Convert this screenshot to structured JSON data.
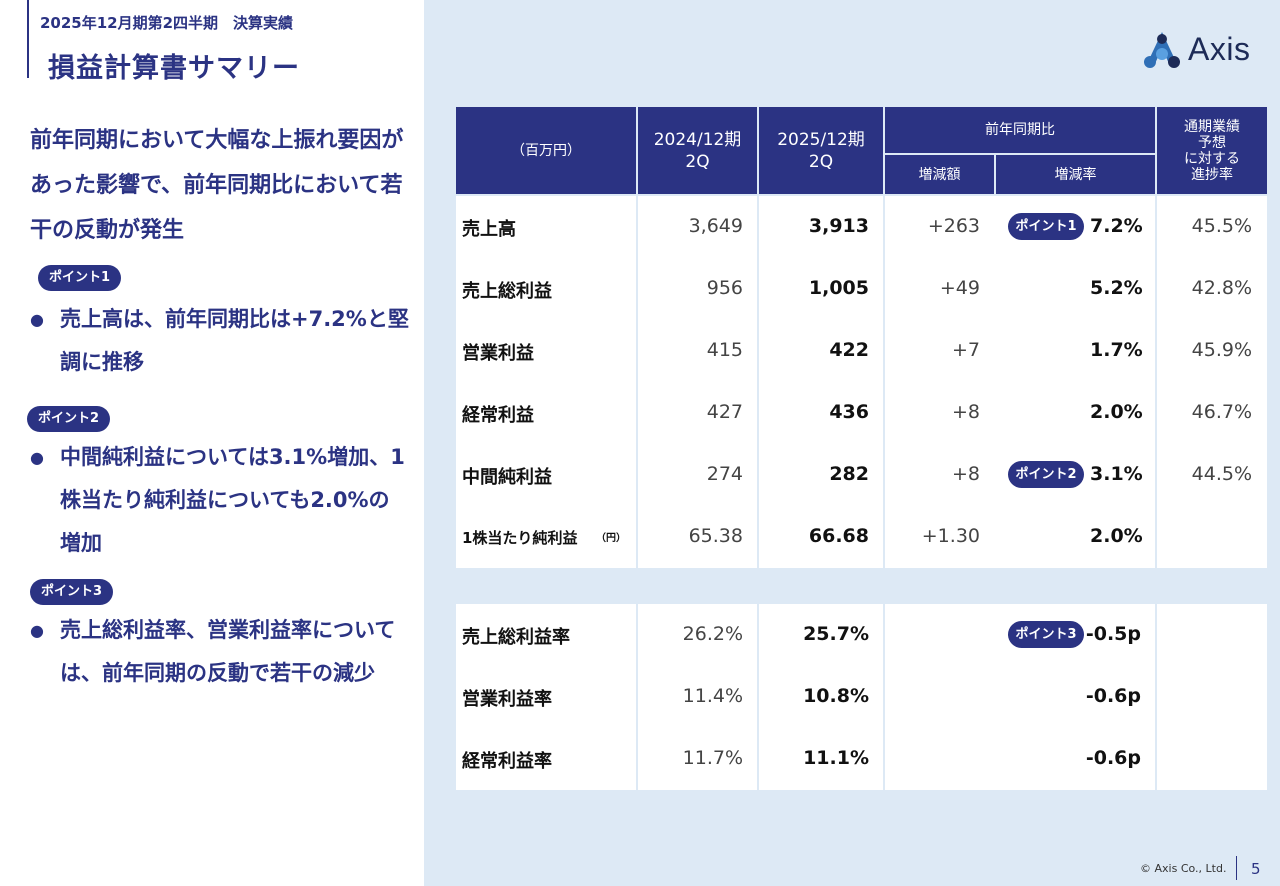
{
  "header": {
    "subtitle": "2025年12月期第2四半期　決算実績",
    "title": "損益計算書サマリー"
  },
  "headline": "前年同期において大幅な上振れ要因があった影響で、前年同期比において若干の反動が発生",
  "points": [
    {
      "badge": "ポイント1",
      "bullet": "●",
      "text": "売上高は、前年同期比は+7.2%と堅調に推移"
    },
    {
      "badge": "ポイント2",
      "bullet": "●",
      "text": "中間純利益については3.1%増加、1株当たり純利益についても2.0%の増加"
    },
    {
      "badge": "ポイント3",
      "bullet": "●",
      "text": "売上総利益率、営業利益率については、前年同期の反動で若干の減少"
    }
  ],
  "logo": {
    "text": "Axis",
    "icon": "axis-logo-icon"
  },
  "table": {
    "unit": "（百万円）",
    "col_prev_1": "2024/12期",
    "col_prev_2": "2Q",
    "col_curr_1": "2025/12期",
    "col_curr_2": "2Q",
    "col_yoy": "前年同期比",
    "col_diff": "増減額",
    "col_rate": "増減率",
    "col_prog_1": "通期業績",
    "col_prog_2": "予想",
    "col_prog_3": "に対する",
    "col_prog_4": "進捗率",
    "rows": [
      {
        "label": "売上高",
        "unit": "",
        "prev": "3,649",
        "curr": "3,913",
        "diff": "+263",
        "badge": "ポイント1",
        "rate": "7.2%",
        "progress": "45.5%"
      },
      {
        "label": "売上総利益",
        "unit": "",
        "prev": "956",
        "curr": "1,005",
        "diff": "+49",
        "badge": "",
        "rate": "5.2%",
        "progress": "42.8%"
      },
      {
        "label": "営業利益",
        "unit": "",
        "prev": "415",
        "curr": "422",
        "diff": "+7",
        "badge": "",
        "rate": "1.7%",
        "progress": "45.9%"
      },
      {
        "label": "経常利益",
        "unit": "",
        "prev": "427",
        "curr": "436",
        "diff": "+8",
        "badge": "",
        "rate": "2.0%",
        "progress": "46.7%"
      },
      {
        "label": "中間純利益",
        "unit": "",
        "prev": "274",
        "curr": "282",
        "diff": "+8",
        "badge": "ポイント2",
        "rate": "3.1%",
        "progress": "44.5%"
      },
      {
        "label": "1株当たり純利益",
        "unit": "（円）",
        "prev": "65.38",
        "curr": "66.68",
        "diff": "+1.30",
        "badge": "",
        "rate": "2.0%",
        "progress": ""
      }
    ],
    "ratio_rows": [
      {
        "label": "売上総利益率",
        "prev": "26.2%",
        "curr": "25.7%",
        "badge": "ポイント3",
        "rate": "-0.5p"
      },
      {
        "label": "営業利益率",
        "prev": "11.4%",
        "curr": "10.8%",
        "badge": "",
        "rate": "-0.6p"
      },
      {
        "label": "経常利益率",
        "prev": "11.7%",
        "curr": "11.1%",
        "badge": "",
        "rate": "-0.6p"
      }
    ]
  },
  "footer": {
    "copyright": "© Axis Co., Ltd.",
    "page": "5"
  }
}
